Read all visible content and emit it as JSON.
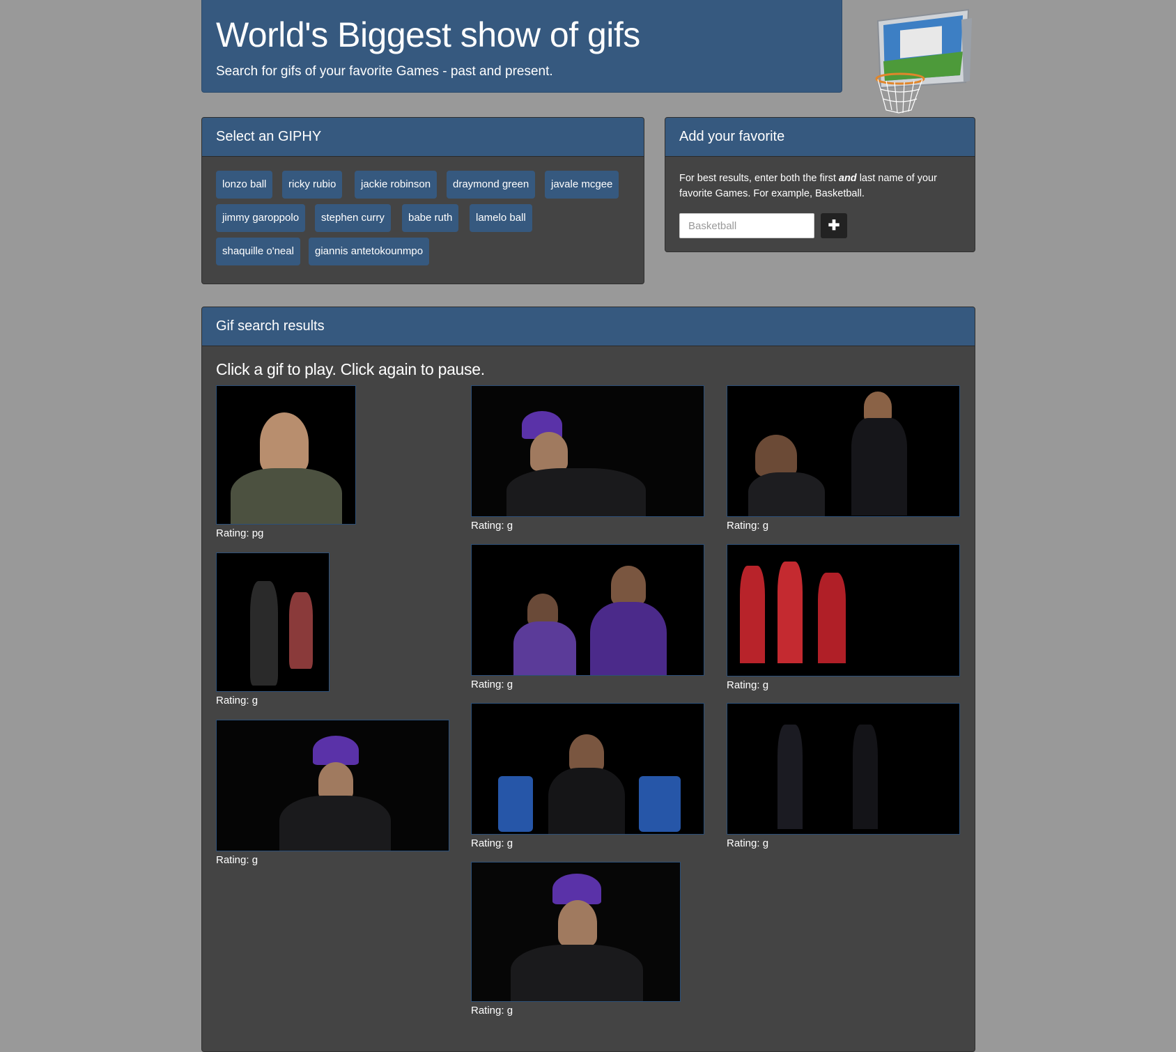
{
  "header": {
    "title": "World's Biggest show of gifs",
    "subtitle": "Search for gifs of your favorite Games - past and present."
  },
  "select_panel": {
    "heading": "Select an GIPHY",
    "buttons": [
      "lonzo ball",
      "ricky rubio",
      "jackie robinson",
      "draymond green",
      "javale mcgee",
      "jimmy garoppolo",
      "stephen curry",
      "babe ruth",
      "lamelo ball",
      "shaquille o'neal",
      "giannis antetokounmpo"
    ]
  },
  "add_panel": {
    "heading": "Add your favorite",
    "hint_before": "For best results, enter both the first ",
    "hint_emphasis": "and",
    "hint_after": " last name of your favorite Games. For example, Basketball.",
    "input_placeholder": "Basketball",
    "add_button_label": "✚"
  },
  "results_panel": {
    "heading": "Gif search results",
    "instruction": "Click a gif to play. Click again to pause.",
    "gifs": [
      {
        "rating": "Rating: pg"
      },
      {
        "rating": "Rating: g"
      },
      {
        "rating": "Rating: g"
      },
      {
        "rating": "Rating: g"
      },
      {
        "rating": "Rating: g"
      },
      {
        "rating": "Rating: g"
      },
      {
        "rating": "Rating: g"
      },
      {
        "rating": "Rating: g"
      },
      {
        "rating": "Rating: g"
      },
      {
        "rating": "Rating: g"
      }
    ]
  },
  "colors": {
    "page_bg": "#999999",
    "panel_heading": "#36597f",
    "panel_body": "#444444",
    "button": "#36597f"
  }
}
